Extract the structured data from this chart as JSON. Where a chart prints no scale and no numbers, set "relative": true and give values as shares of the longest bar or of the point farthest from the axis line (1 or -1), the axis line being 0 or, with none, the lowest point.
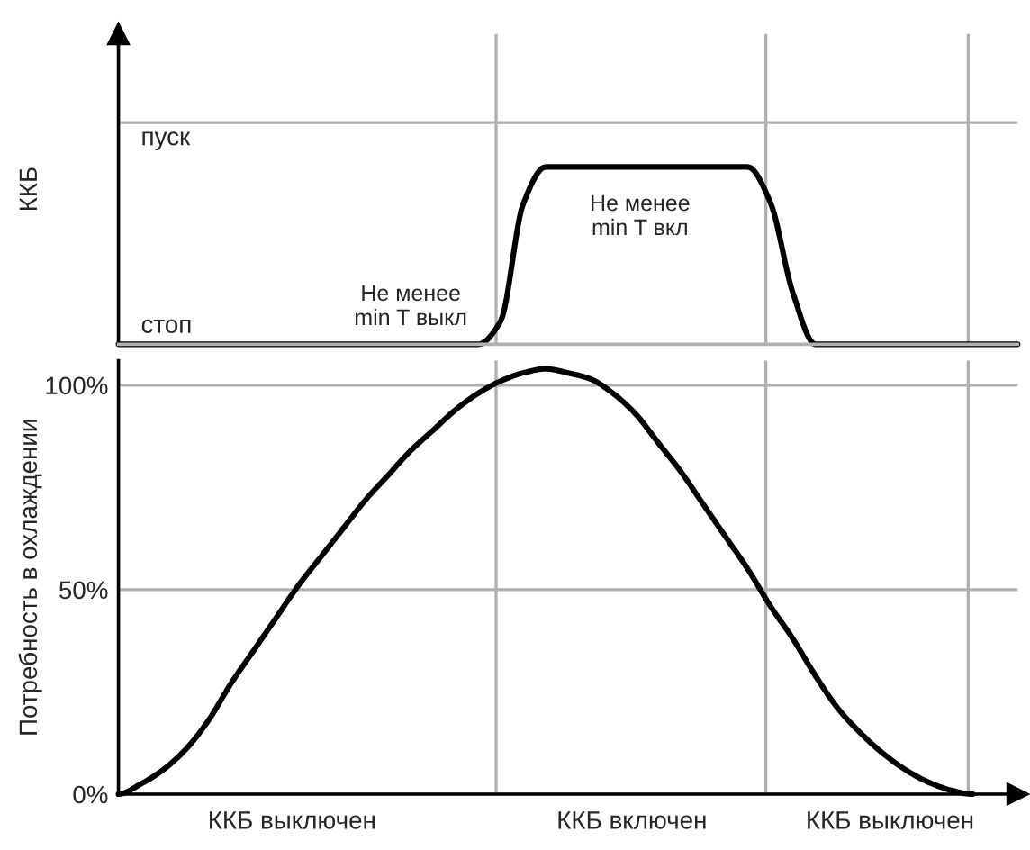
{
  "chart_data": [
    {
      "type": "line",
      "ylabel": "ККБ",
      "relative": true,
      "categories": [
        null,
        null,
        null,
        null,
        null,
        null,
        null,
        null,
        null,
        null,
        null,
        null,
        null,
        null,
        null,
        null,
        null,
        null,
        null,
        null,
        null,
        null,
        null,
        null,
        null,
        null,
        null,
        null,
        null,
        null,
        null,
        null,
        null,
        null,
        null,
        null,
        null,
        null,
        null,
        null,
        null
      ],
      "series": [
        {
          "color": "#000000",
          "values": [
            0,
            0,
            0,
            0,
            0,
            0,
            0,
            0,
            0,
            0,
            0,
            0,
            0,
            0,
            0,
            0,
            0,
            0.13,
            0.79,
            1,
            1,
            1,
            1,
            1,
            1,
            1,
            1,
            1,
            1,
            0.8,
            0.29,
            0,
            0,
            0,
            0,
            0,
            0,
            0,
            0,
            0,
            0
          ]
        }
      ],
      "tick_labels": false,
      "marker": "none",
      "line_style": "solid",
      "ref_lines": [
        {
          "axis": "y",
          "value": 1.25,
          "color": "#b0b0b0"
        }
      ],
      "annotations": [
        "стоп",
        "пуск",
        "Не менее\nmin T выкл",
        "Не менее\nmin T вкл"
      ]
    },
    {
      "type": "line",
      "ylabel": "Потребность в охлаждении",
      "categories": [
        null,
        null,
        null,
        null,
        null,
        null,
        null,
        null,
        null,
        null,
        null,
        null,
        null,
        null,
        null,
        null,
        null,
        null,
        null,
        null,
        null,
        null,
        null,
        null,
        null,
        null,
        null,
        null,
        null,
        null,
        null,
        null,
        null,
        null,
        null,
        null,
        null,
        null,
        null,
        null,
        null
      ],
      "series": [
        {
          "color": "#000000",
          "values": [
            0,
            2.5,
            6,
            11,
            18,
            27,
            35,
            43,
            51,
            58,
            65,
            72,
            78,
            84,
            89,
            94,
            98,
            101,
            103,
            104,
            103,
            101.5,
            98,
            93,
            86,
            79,
            71,
            63,
            55,
            46,
            38,
            29,
            21,
            15,
            10,
            6,
            3,
            1,
            0,
            null,
            null
          ]
        }
      ],
      "ylim": [
        0,
        106
      ],
      "yticks": [
        {
          "value": 0,
          "label": "0%"
        },
        {
          "value": 50,
          "label": "50%"
        },
        {
          "value": 100,
          "label": "100%"
        }
      ],
      "tick_labels": "y",
      "grid": "y",
      "marker": "none",
      "line_style": "solid",
      "annotations": [
        "ККБ выключен",
        "ККБ включен",
        "ККБ выключен"
      ]
    }
  ]
}
